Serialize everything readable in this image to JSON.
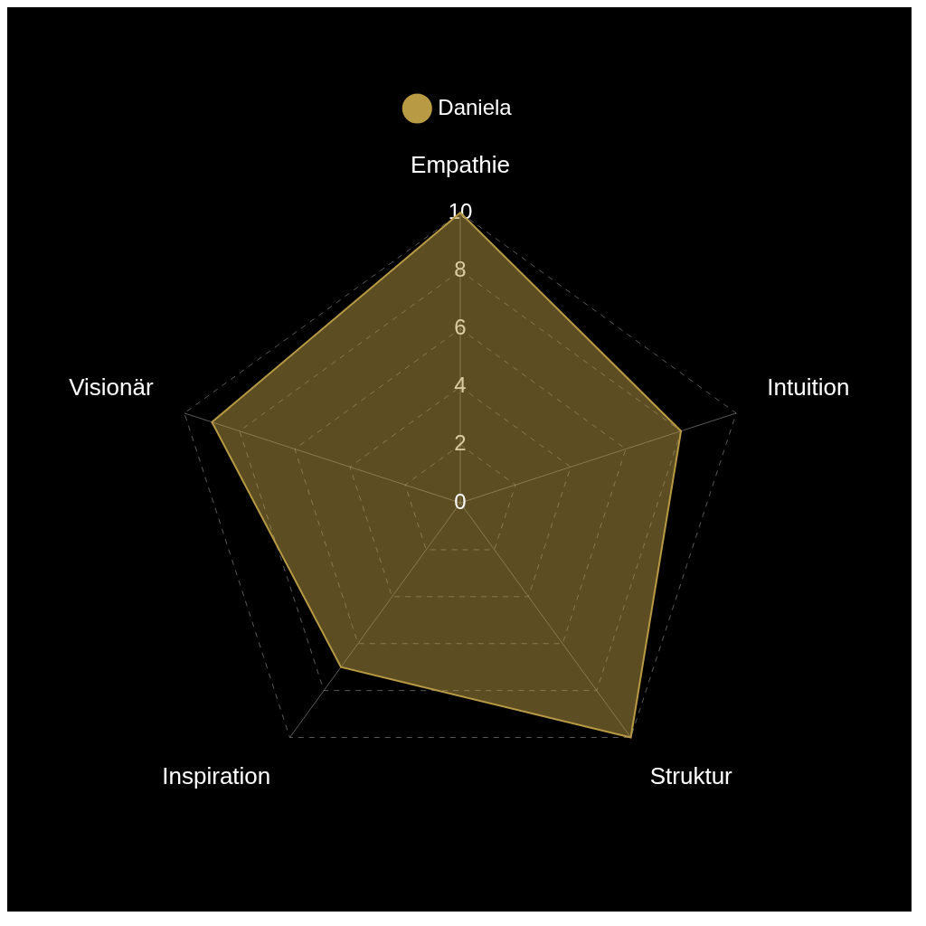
{
  "chart_data": {
    "type": "radar",
    "categories": [
      "Empathie",
      "Intuition",
      "Struktur",
      "Inspiration",
      "Visionär"
    ],
    "series": [
      {
        "name": "Daniela",
        "color": "#b89a44",
        "values": [
          10,
          8,
          10,
          7,
          9
        ]
      }
    ],
    "ylim": [
      0,
      10
    ],
    "yticks": [
      0,
      2,
      4,
      6,
      8,
      10
    ],
    "grid": true,
    "legend": "top"
  }
}
